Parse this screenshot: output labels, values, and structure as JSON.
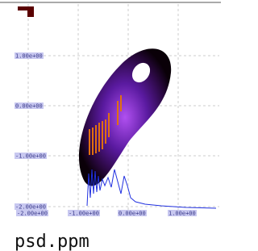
{
  "plot": {
    "y_labels": [
      "1.00e+00",
      "0.00e+00",
      "-1.00e+00",
      "-2.00e+00"
    ],
    "x_labels": [
      "-2.00e+00",
      "-1.00e+00",
      "0.00e+00",
      "1.00e+00"
    ]
  },
  "caption": "psd.ppm"
}
